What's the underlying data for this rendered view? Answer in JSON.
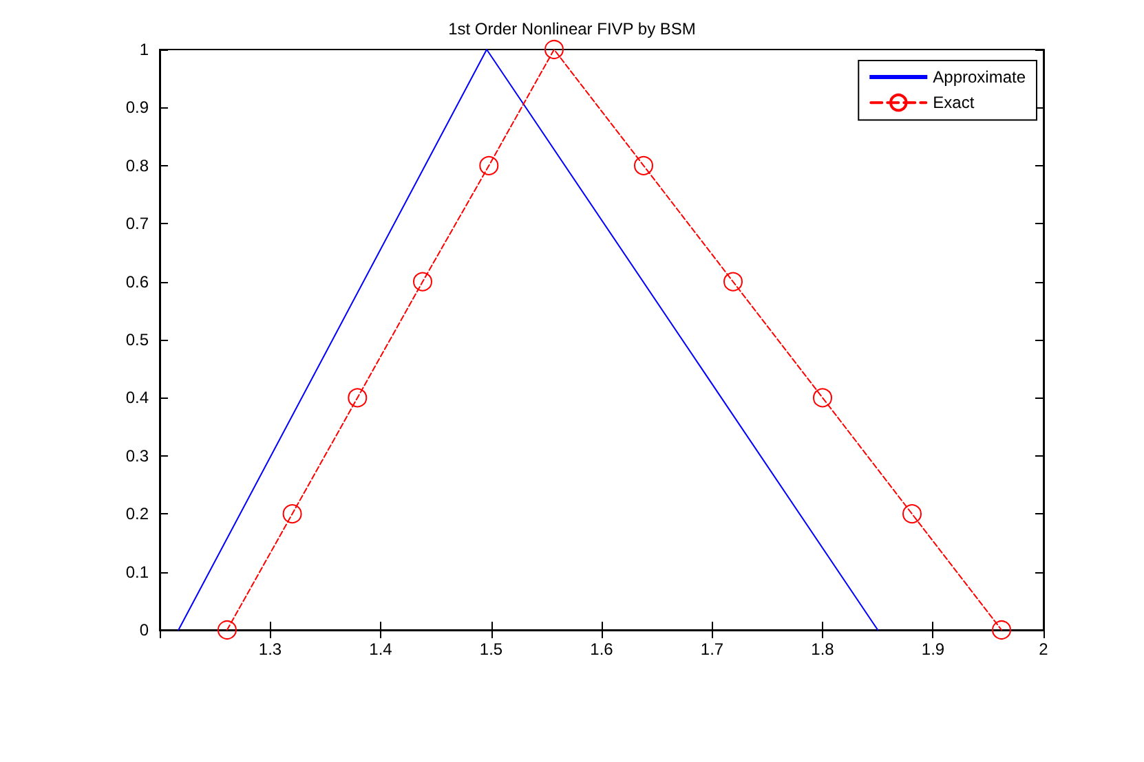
{
  "chart_data": {
    "type": "line",
    "title": "1st Order Nonlinear FIVP by BSM",
    "xlim": [
      1.2,
      2
    ],
    "xticks": [
      {
        "value": 1.2,
        "label": null
      },
      1.3,
      1.4,
      1.5,
      1.6,
      1.7,
      1.8,
      1.9,
      2
    ],
    "ylim": [
      0,
      1
    ],
    "yticks": [
      0,
      0.1,
      0.2,
      0.3,
      0.4,
      0.5,
      0.6,
      0.7,
      0.8,
      0.9,
      1
    ],
    "grid": false,
    "legend": "top right",
    "series": [
      {
        "name": "Approximate",
        "color": "#0000ff",
        "x": [
          1.217,
          1.496,
          1.85
        ],
        "values": [
          0,
          1,
          0
        ],
        "marker": "none",
        "line_style": "solid"
      },
      {
        "name": "Exact",
        "color": "#ff0000",
        "x": [
          1.261,
          1.32,
          1.379,
          1.438,
          1.498,
          1.557,
          1.638,
          1.719,
          1.8,
          1.881,
          1.962
        ],
        "values": [
          0,
          0.2,
          0.4,
          0.6,
          0.8,
          1,
          0.8,
          0.6,
          0.4,
          0.2,
          0
        ],
        "marker": "circle",
        "line_style": "dashed"
      }
    ]
  }
}
